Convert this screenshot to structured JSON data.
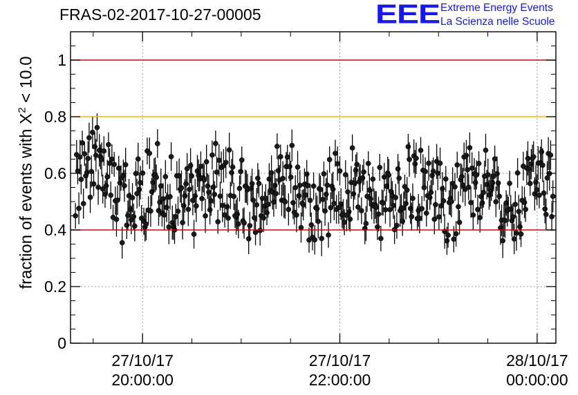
{
  "header": {
    "title": "FRAS-02-2017-10-27-00005",
    "logo_mark": "EEE",
    "logo_line1": "Extreme Energy Events",
    "logo_line2": "La Scienza nelle Scuole"
  },
  "colors": {
    "limit_line": "#e00000",
    "warn_line": "#ffb000",
    "points": "#000000",
    "grid": "#999999",
    "logo": "#1515ff"
  },
  "chart_data": {
    "type": "scatter",
    "ylabel_prefix": "fraction of events with X",
    "ylabel_sup": "2",
    "ylabel_suffix": " < 10.0",
    "x_unit": "hours",
    "x_ticks": [
      {
        "x": 20,
        "label_date": "27/10/17",
        "label_time": "20:00:00"
      },
      {
        "x": 22,
        "label_date": "27/10/17",
        "label_time": "22:00:00"
      },
      {
        "x": 24,
        "label_date": "28/10/17",
        "label_time": "00:00:00"
      }
    ],
    "xlim": [
      19.27,
      24.19
    ],
    "ylim": [
      0,
      1.1
    ],
    "y_ticks": [
      0,
      0.2,
      0.4,
      0.6,
      0.8,
      1
    ],
    "y_tick_labels": [
      "0",
      "0.2",
      "0.4",
      "0.6",
      "0.8",
      "1"
    ],
    "hlines": [
      {
        "y": 1.0,
        "color": "red"
      },
      {
        "y": 0.8,
        "color": "orange"
      },
      {
        "y": 0.4,
        "color": "red"
      }
    ],
    "grid": true,
    "n_points": 420,
    "y_range_observed": [
      0.31,
      0.82
    ],
    "typical_error": 0.05,
    "series_sample_hint": "points fluctuate around 0.52 with error bars ~±0.05"
  }
}
